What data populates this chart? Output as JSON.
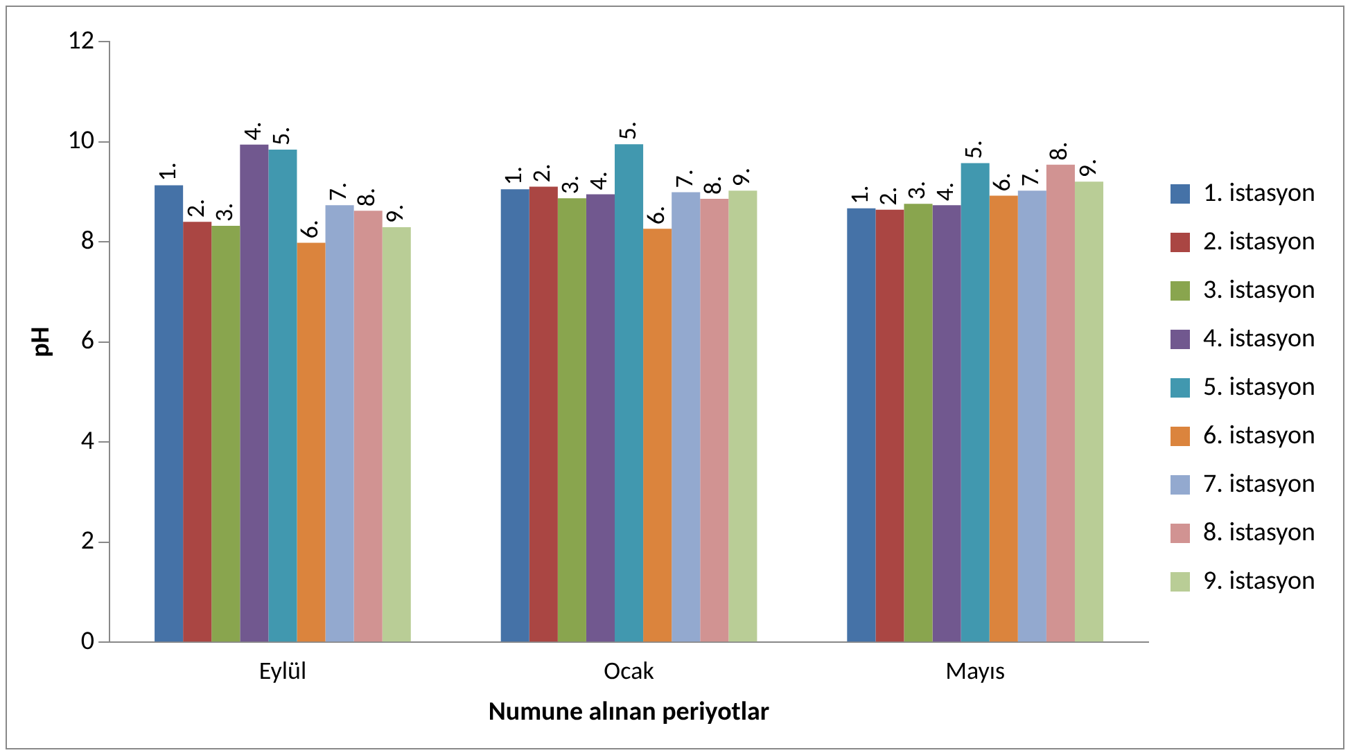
{
  "chart_data": {
    "type": "bar",
    "xlabel": "Numune alınan periyotlar",
    "ylabel": "pH",
    "categories": [
      "Eylül",
      "Ocak",
      "Mayıs"
    ],
    "ylim": [
      0,
      12
    ],
    "yticks": [
      0,
      2,
      4,
      6,
      8,
      10,
      12
    ],
    "grid": false,
    "legend": "right",
    "series": [
      {
        "name": "1. istasyon",
        "color": "#4572a7",
        "values": [
          9.13,
          9.05,
          8.67
        ]
      },
      {
        "name": "2. istasyon",
        "color": "#aa4643",
        "values": [
          8.4,
          9.1,
          8.64
        ]
      },
      {
        "name": "3. istasyon",
        "color": "#89a54e",
        "values": [
          8.32,
          8.87,
          8.76
        ]
      },
      {
        "name": "4. istasyon",
        "color": "#71588f",
        "values": [
          9.94,
          8.95,
          8.73
        ]
      },
      {
        "name": "5. istasyon",
        "color": "#4198af",
        "values": [
          9.84,
          9.95,
          9.57
        ]
      },
      {
        "name": "6. istasyon",
        "color": "#db843d",
        "values": [
          7.98,
          8.26,
          8.92
        ]
      },
      {
        "name": "7. istasyon",
        "color": "#93a9cf",
        "values": [
          8.73,
          8.99,
          9.02
        ]
      },
      {
        "name": "8. istasyon",
        "color": "#d19392",
        "values": [
          8.62,
          8.86,
          9.54
        ]
      },
      {
        "name": "9. istasyon",
        "color": "#b9cd96",
        "values": [
          8.29,
          9.02,
          9.2
        ]
      }
    ],
    "annotations": [
      "1.",
      "2.",
      "3.",
      "4.",
      "5.",
      "6.",
      "7.",
      "8.",
      "9.",
      "1.",
      "2.",
      "3.",
      "4.",
      "5.",
      "6.",
      "7.",
      "8.",
      "9.",
      "1.",
      "2.",
      "3.",
      "4.",
      "5.",
      "6.",
      "7.",
      "8.",
      "9."
    ]
  }
}
